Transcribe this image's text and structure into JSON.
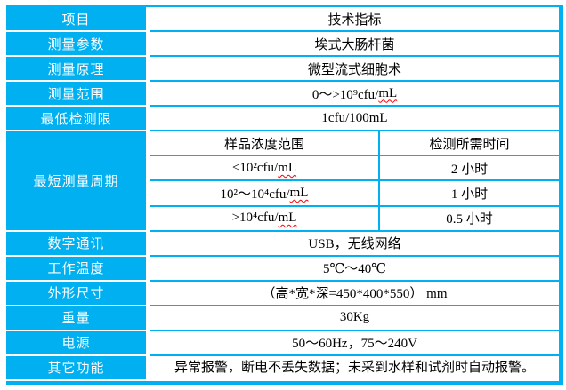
{
  "colors": {
    "accent": "#00B0F0",
    "label_text": "#FFFFFF",
    "value_text": "#000000",
    "misspell_underline": "#FF0000",
    "page_background": "#FFFFFF"
  },
  "spec_table": {
    "header_row": {
      "label": "项目",
      "value": "技术指标"
    },
    "rows_top": [
      {
        "label": "测量参数",
        "value": "埃式大肠杆菌"
      },
      {
        "label": "测量原理",
        "value": "微型流式细胞术"
      },
      {
        "label": "测量范围",
        "value": "0～>10⁹cfu/",
        "unit": "mL"
      },
      {
        "label": "最低检测限",
        "value": "1cfu/100mL"
      }
    ],
    "cycle_section": {
      "label": "最短测量周期",
      "columns": {
        "range": "样品浓度范围",
        "time": "检测所需时间"
      },
      "entries": [
        {
          "range": "<10²cfu/",
          "range_unit": "mL",
          "time": "2 小时"
        },
        {
          "range": "10²～10⁴cfu/",
          "range_unit": "mL",
          "time": "1 小时"
        },
        {
          "range": ">10⁴cfu/",
          "range_unit": "mL",
          "time": "0.5 小时"
        }
      ]
    },
    "rows_bottom": [
      {
        "label": "数字通讯",
        "value": "USB，无线网络"
      },
      {
        "label": "工作温度",
        "value": "5℃～40℃"
      },
      {
        "label": "外形尺寸",
        "value": "（高*宽*深=450*400*550） mm"
      },
      {
        "label": "重量",
        "value": "30Kg"
      },
      {
        "label": "电源",
        "value": "50～60Hz，75～240V"
      },
      {
        "label": "其它功能",
        "value": "异常报警，断电不丢失数据；未采到水样和试剂时自动报警。"
      }
    ]
  }
}
